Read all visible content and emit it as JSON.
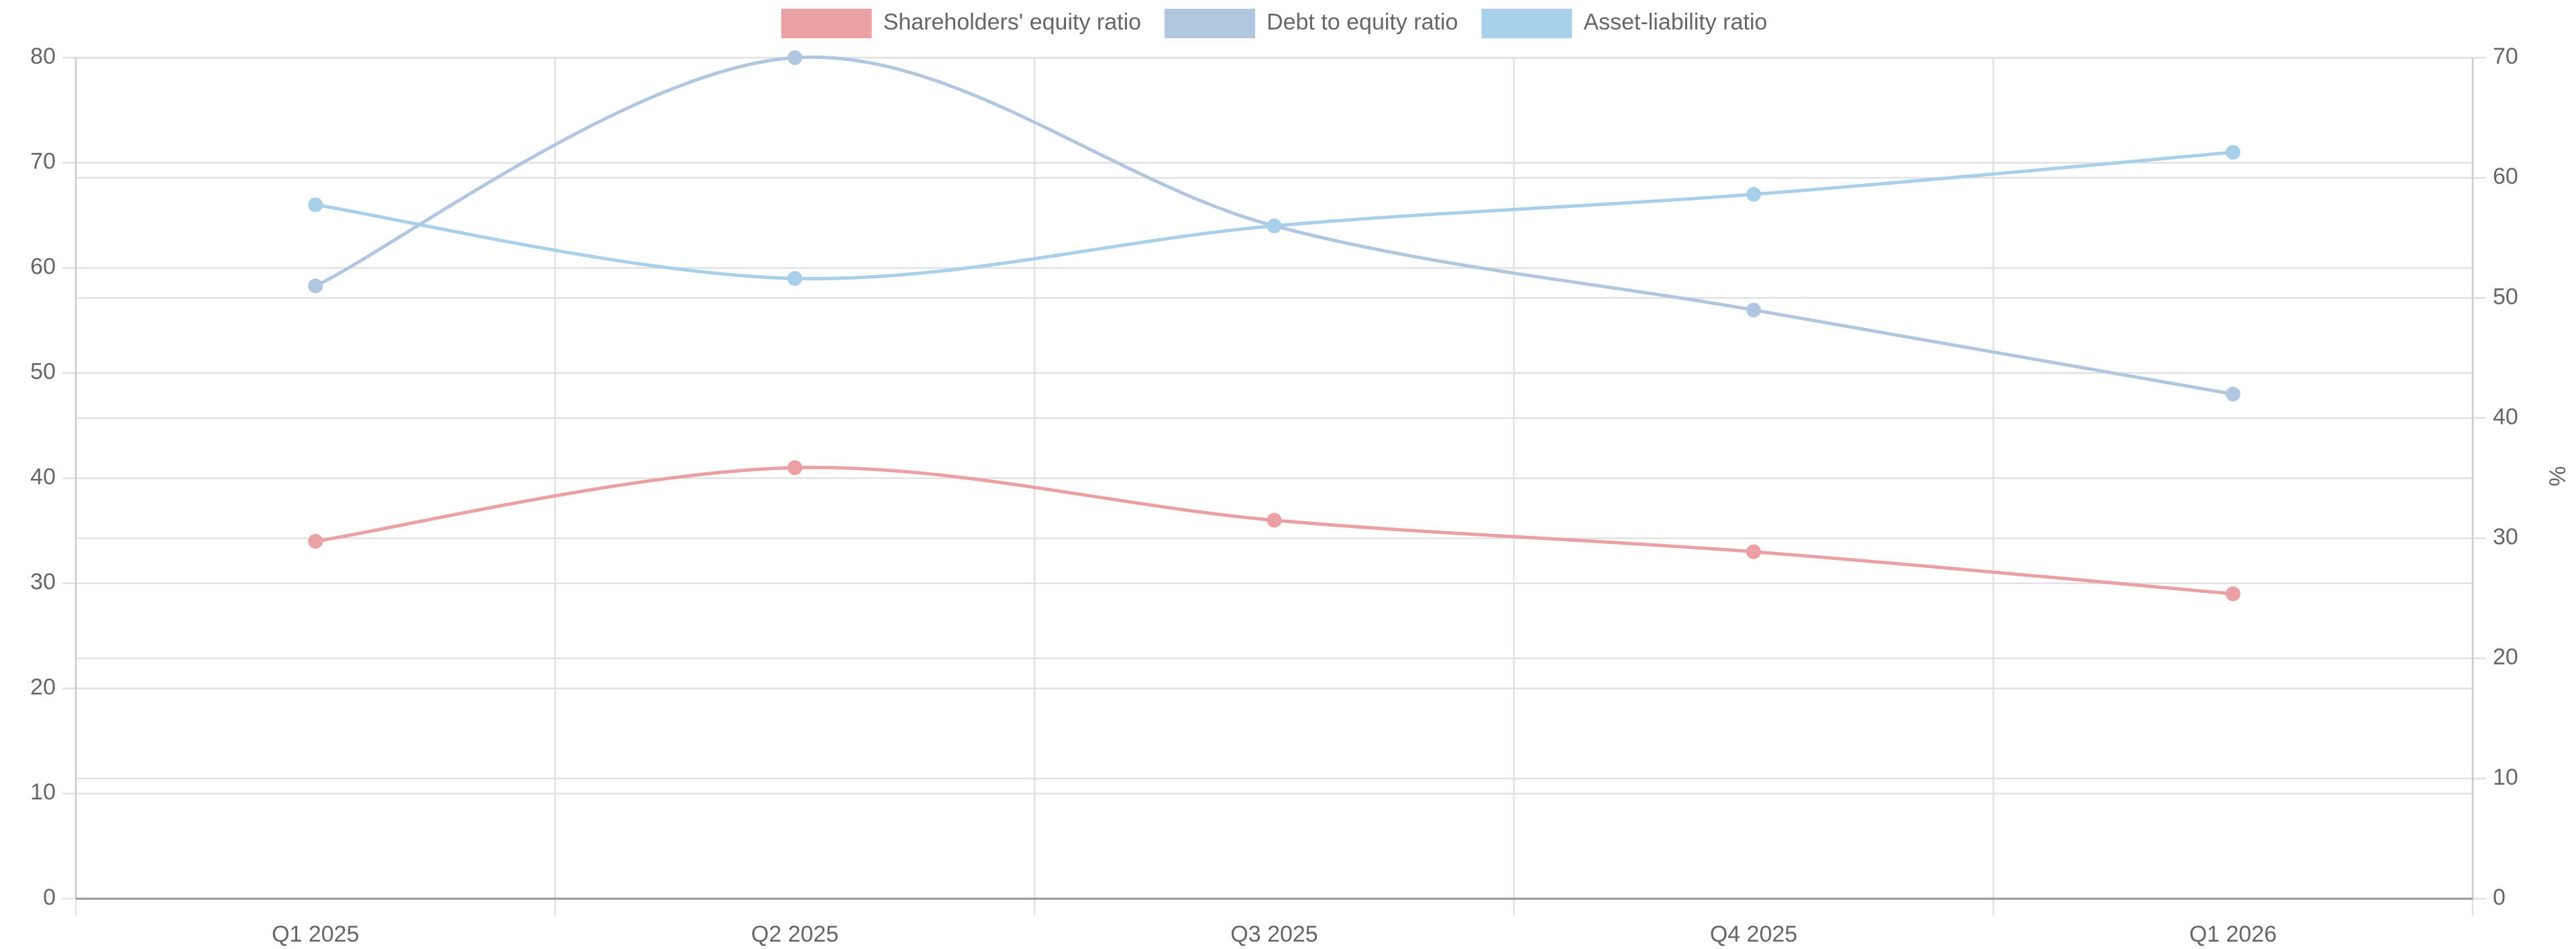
{
  "chart_data": {
    "type": "line",
    "categories": [
      "Q1 2025",
      "Q2 2025",
      "Q3 2025",
      "Q4 2025",
      "Q1 2026"
    ],
    "series": [
      {
        "name": "Shareholders' equity ratio",
        "color": "#eba1a3",
        "values": [
          34,
          41,
          36,
          33,
          29
        ]
      },
      {
        "name": "Debt to equity ratio",
        "color": "#b1c7df",
        "axis": "y2",
        "values": [
          51,
          70,
          56,
          49,
          42
        ]
      },
      {
        "name": "Asset-liability ratio",
        "color": "#a9d0ea",
        "values": [
          66,
          59,
          64,
          67,
          71
        ]
      }
    ],
    "ylim": [
      0,
      80
    ],
    "yticks": [
      0,
      10,
      20,
      30,
      40,
      50,
      60,
      70,
      80
    ],
    "y2lim": [
      0,
      70
    ],
    "y2ticks": [
      0,
      10,
      20,
      30,
      40,
      50,
      60,
      70
    ],
    "y2label": "%",
    "grid": true,
    "smooth": true,
    "legend": "top"
  }
}
